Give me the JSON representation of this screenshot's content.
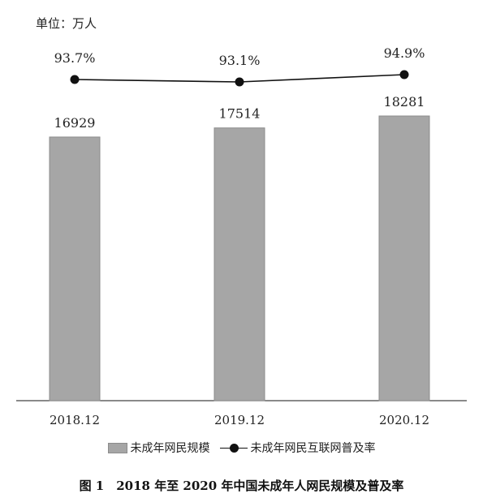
{
  "unit_label": "单位：万人",
  "caption": "图 1　2018 年至 2020 年中国未成年人网民规模及普及率",
  "legend": {
    "bar_label": "未成年网民规模",
    "line_label": "未成年网民互联网普及率"
  },
  "colors": {
    "bar": "#a6a6a6",
    "bar_stroke": "#8c8c8c",
    "line": "#111111",
    "axis": "#444444"
  },
  "chart_data": {
    "type": "bar",
    "categories": [
      "2018.12",
      "2019.12",
      "2020.12"
    ],
    "series": [
      {
        "name": "未成年网民规模",
        "type": "bar",
        "values": [
          16929,
          17514,
          18281
        ],
        "labels": [
          "16929",
          "17514",
          "18281"
        ]
      },
      {
        "name": "未成年网民互联网普及率",
        "type": "line",
        "values": [
          93.7,
          93.1,
          94.9
        ],
        "labels": [
          "93.7%",
          "93.1%",
          "94.9%"
        ]
      }
    ],
    "unit": "万人",
    "grid": false,
    "legend_position": "bottom"
  }
}
